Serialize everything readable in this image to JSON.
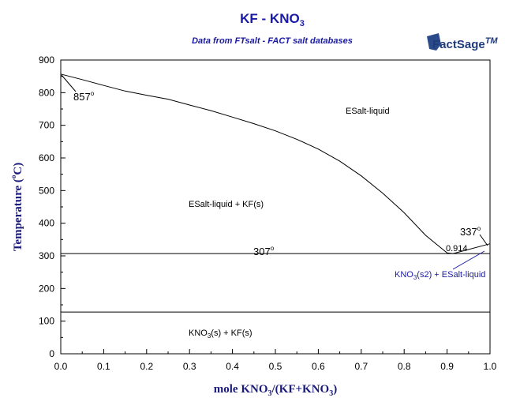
{
  "chart_data": {
    "type": "line",
    "title": "KF - KNO3",
    "title_main": "KF - KNO",
    "title_sub": "3",
    "subtitle": "Data from FTsalt - FACT salt databases",
    "logo": {
      "text": "FactSage",
      "mark": "TM"
    },
    "xlabel": "mole KNO3/(KF+KNO3)",
    "xlabel_parts": {
      "a": "mole KNO",
      "b": "3",
      "c": "/(KF+KNO",
      "d": "3",
      "e": ")"
    },
    "ylabel": "Temperature (°C)",
    "ylabel_parts": {
      "a": "Temperature (",
      "deg": "o",
      "b": "C)"
    },
    "xlim": [
      0,
      1
    ],
    "ylim": [
      0,
      900
    ],
    "x_ticks": [
      "0.0",
      "0.1",
      "0.2",
      "0.3",
      "0.4",
      "0.5",
      "0.6",
      "0.7",
      "0.8",
      "0.9",
      "1.0"
    ],
    "y_ticks": [
      "0",
      "100",
      "200",
      "300",
      "400",
      "500",
      "600",
      "700",
      "800",
      "900"
    ],
    "x_tick_values": [
      0,
      0.1,
      0.2,
      0.3,
      0.4,
      0.5,
      0.6,
      0.7,
      0.8,
      0.9,
      1.0
    ],
    "y_tick_values": [
      0,
      100,
      200,
      300,
      400,
      500,
      600,
      700,
      800,
      900
    ],
    "grid": false,
    "series": [
      {
        "values": [
          [
            0.0,
            857
          ],
          [
            0.05,
            840
          ],
          [
            0.1,
            822
          ],
          [
            0.15,
            805
          ],
          [
            0.2,
            792
          ],
          [
            0.25,
            780
          ],
          [
            0.3,
            762
          ],
          [
            0.35,
            745
          ],
          [
            0.4,
            725
          ],
          [
            0.45,
            705
          ],
          [
            0.5,
            683
          ],
          [
            0.55,
            657
          ],
          [
            0.6,
            627
          ],
          [
            0.65,
            590
          ],
          [
            0.7,
            545
          ],
          [
            0.75,
            492
          ],
          [
            0.8,
            432
          ],
          [
            0.85,
            363
          ],
          [
            0.9,
            309
          ],
          [
            0.914,
            307
          ]
        ]
      },
      {
        "values": [
          [
            0.914,
            307
          ],
          [
            1.0,
            337
          ]
        ]
      }
    ],
    "horizontal_lines": [
      {
        "y": 307
      },
      {
        "y": 128
      }
    ],
    "annotations": {
      "label_857": "857",
      "label_307": "307",
      "label_337": "337",
      "degree": "o",
      "label_0914": "0.914"
    },
    "region_labels": {
      "liquid": "ESalt-liquid",
      "liquid_kf": "ESalt-liquid + KF(s)",
      "kno3_kf_a": "KNO",
      "kno3_kf_sub": "3",
      "kno3_kf_b": "(s) + KF(s)",
      "kno3s2_a": "KNO",
      "kno3s2_sub": "3",
      "kno3s2_b": "(s2) + ESalt-liquid"
    }
  }
}
